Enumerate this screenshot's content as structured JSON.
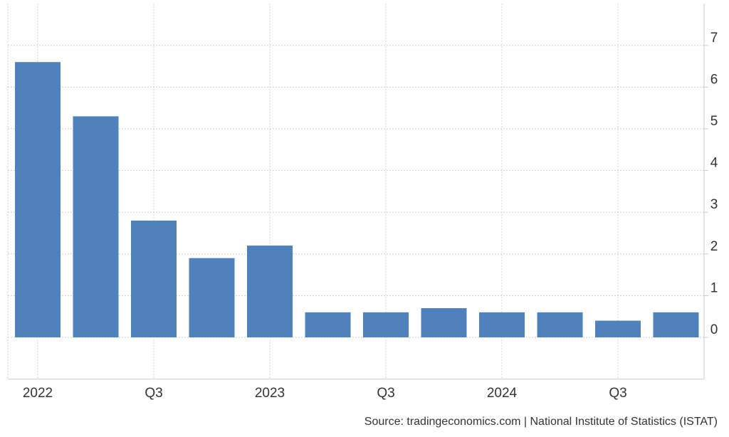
{
  "chart_data": {
    "type": "bar",
    "categories": [
      "2022 Q1",
      "2022 Q2",
      "2022 Q3",
      "2022 Q4",
      "2023 Q1",
      "2023 Q2",
      "2023 Q3",
      "2023 Q4",
      "2024 Q1",
      "2024 Q2",
      "2024 Q3",
      "2024 Q4"
    ],
    "values": [
      6.6,
      5.3,
      2.8,
      1.9,
      2.2,
      0.6,
      0.6,
      0.7,
      0.6,
      0.6,
      0.4,
      0.6
    ],
    "x_tick_labels": [
      {
        "category_index": 0,
        "label": "2022"
      },
      {
        "category_index": 2,
        "label": "Q3"
      },
      {
        "category_index": 4,
        "label": "2023"
      },
      {
        "category_index": 6,
        "label": "Q3"
      },
      {
        "category_index": 8,
        "label": "2024"
      },
      {
        "category_index": 10,
        "label": "Q3"
      }
    ],
    "y_ticks": [
      0,
      1,
      2,
      3,
      4,
      5,
      6,
      7
    ],
    "ylim": [
      -1,
      8
    ],
    "y_axis_side": "right",
    "grid": true,
    "bar_color": "#4f81bd",
    "grid_color": "#d0d0d0",
    "source": "Source: tradingeconomics.com | National Institute of Statistics (ISTAT)"
  }
}
